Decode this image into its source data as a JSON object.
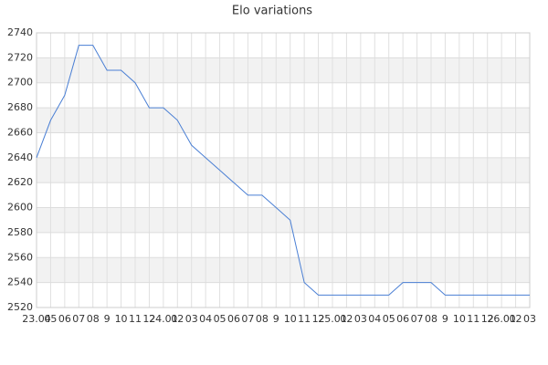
{
  "chart_data": {
    "type": "line",
    "title": "Elo variations",
    "categories": [
      "23.04",
      "05",
      "06",
      "07",
      "08",
      "9",
      "10",
      "11",
      "12",
      "24.01",
      "02",
      "03",
      "04",
      "05",
      "06",
      "07",
      "08",
      "9",
      "10",
      "11",
      "12",
      "25.01",
      "02",
      "03",
      "04",
      "05",
      "06",
      "07",
      "08",
      "9",
      "10",
      "11",
      "12",
      "26.01",
      "02",
      "03"
    ],
    "values": [
      2640,
      2670,
      2690,
      2730,
      2730,
      2710,
      2710,
      2700,
      2680,
      2680,
      2670,
      2650,
      2640,
      2630,
      2620,
      2610,
      2610,
      2600,
      2590,
      2540,
      2530,
      2530,
      2530,
      2530,
      2530,
      2530,
      2540,
      2540,
      2540,
      2530,
      2530,
      2530,
      2530,
      2530,
      2530,
      2530
    ],
    "color": "#4a7fd4",
    "ylim": [
      2520,
      2740
    ],
    "yticks": [
      2520,
      2540,
      2560,
      2580,
      2600,
      2620,
      2640,
      2660,
      2680,
      2700,
      2720,
      2740
    ],
    "grid": true
  }
}
